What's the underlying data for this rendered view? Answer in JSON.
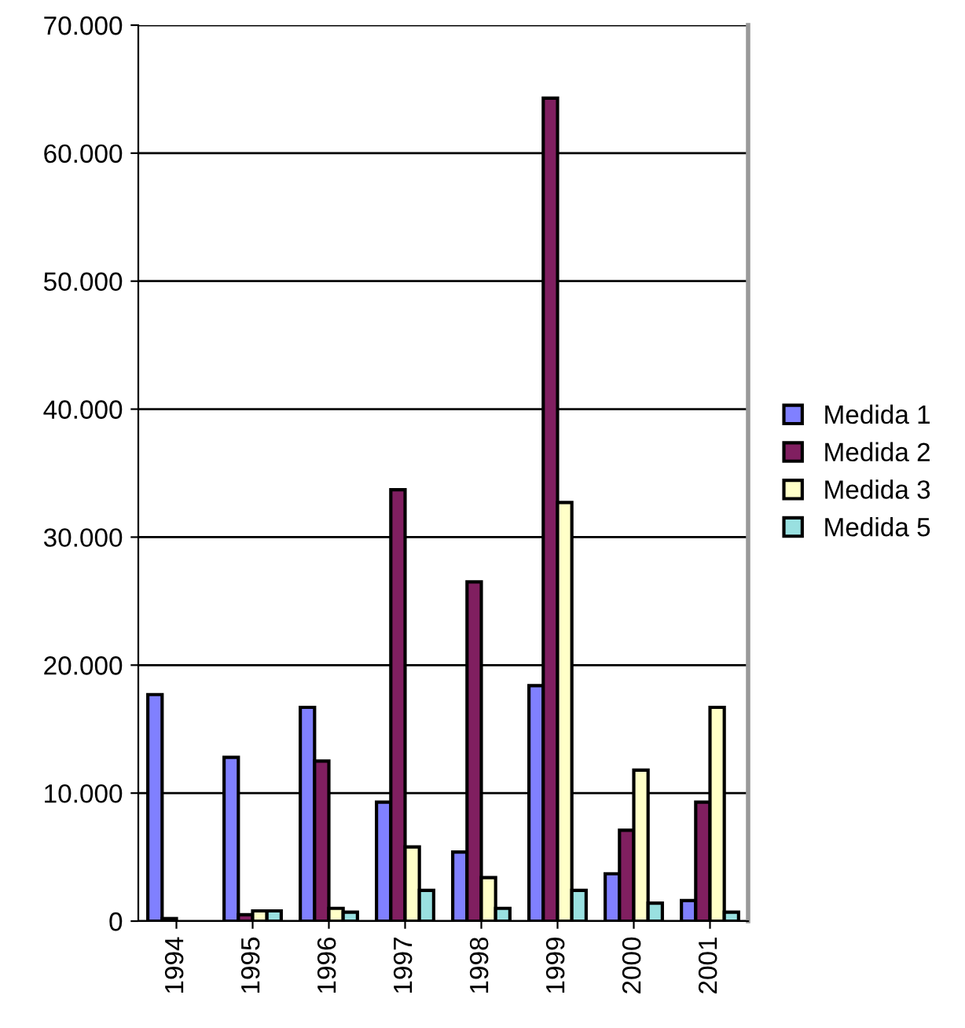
{
  "chart_data": {
    "type": "bar",
    "categories": [
      "1994",
      "1995",
      "1996",
      "1997",
      "1998",
      "1999",
      "2000",
      "2001"
    ],
    "series": [
      {
        "name": "Medida 1",
        "color": "#8080ff",
        "values": [
          17700,
          12800,
          16700,
          9300,
          5400,
          18400,
          3700,
          1600
        ]
      },
      {
        "name": "Medida 2",
        "color": "#801f60",
        "values": [
          200,
          500,
          12500,
          33700,
          26500,
          64300,
          7100,
          9300
        ]
      },
      {
        "name": "Medida 3",
        "color": "#ffffc8",
        "values": [
          null,
          800,
          1000,
          5800,
          3400,
          32700,
          11800,
          16700
        ]
      },
      {
        "name": "Medida 5",
        "color": "#99e0e0",
        "values": [
          null,
          800,
          700,
          2400,
          1000,
          2400,
          1400,
          700
        ]
      }
    ],
    "ylim": [
      0,
      70000
    ],
    "yticks": [
      {
        "value": 0,
        "label": "0"
      },
      {
        "value": 10000,
        "label": "10.000"
      },
      {
        "value": 20000,
        "label": "20.000"
      },
      {
        "value": 30000,
        "label": "30.000"
      },
      {
        "value": 40000,
        "label": "40.000"
      },
      {
        "value": 50000,
        "label": "50.000"
      },
      {
        "value": 60000,
        "label": "60.000"
      },
      {
        "value": 70000,
        "label": "70.000"
      }
    ],
    "grid": "y",
    "legend": "right"
  }
}
